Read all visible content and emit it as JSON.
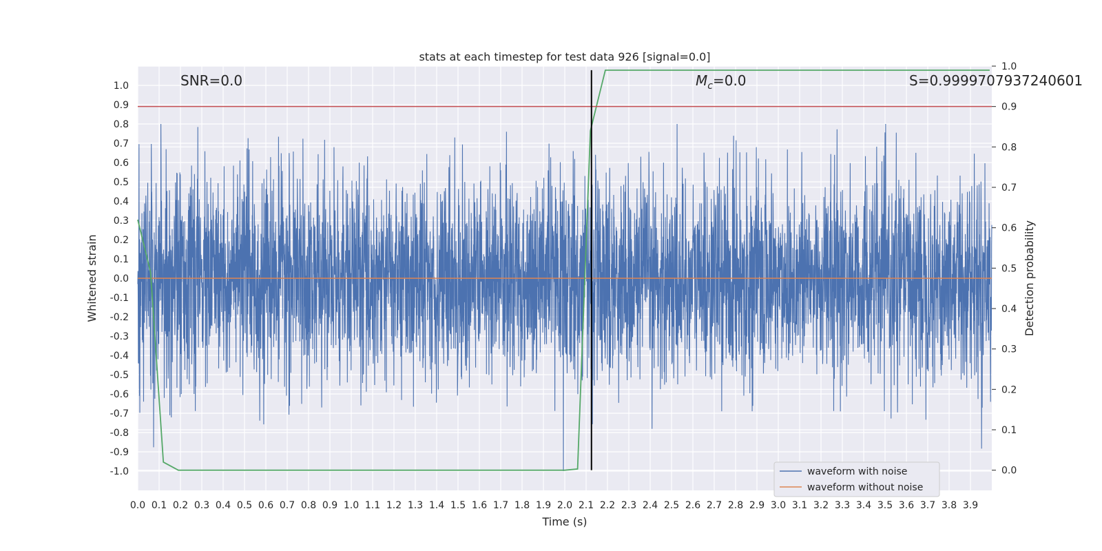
{
  "chart_data": {
    "type": "line",
    "title": "stats at each timestep for test data 926 [signal=0.0]",
    "xlabel": "Time (s)",
    "ylabel": "Whitened strain",
    "y2label": "Detection probability",
    "xlim": [
      0.0,
      4.0
    ],
    "ylim": [
      -1.1,
      1.1
    ],
    "y2lim": [
      -0.05,
      1.0
    ],
    "grid": true,
    "legend_position": "bottom-right",
    "x_ticks": [
      "0.0",
      "0.1",
      "0.2",
      "0.3",
      "0.4",
      "0.5",
      "0.6",
      "0.7",
      "0.8",
      "0.9",
      "1.0",
      "1.1",
      "1.2",
      "1.3",
      "1.4",
      "1.5",
      "1.6",
      "1.7",
      "1.8",
      "1.9",
      "2.0",
      "2.1",
      "2.2",
      "2.3",
      "2.4",
      "2.5",
      "2.6",
      "2.7",
      "2.8",
      "2.9",
      "3.0",
      "3.1",
      "3.2",
      "3.3",
      "3.4",
      "3.5",
      "3.6",
      "3.7",
      "3.8",
      "3.9"
    ],
    "y_ticks": [
      "1.0",
      "0.9",
      "0.8",
      "0.7",
      "0.6",
      "0.5",
      "0.4",
      "0.3",
      "0.2",
      "0.1",
      "0.0",
      "-0.1",
      "-0.2",
      "-0.3",
      "-0.4",
      "-0.5",
      "-0.6",
      "-0.7",
      "-0.8",
      "-0.9",
      "-1.0"
    ],
    "y2_ticks": [
      "0.0",
      "0.1",
      "0.2",
      "0.3",
      "0.4",
      "0.5",
      "0.6",
      "0.7",
      "0.8",
      "0.9",
      "1.0"
    ],
    "annotations": {
      "snr": "SNR=0.0",
      "mc_symbol": "M",
      "mc_sub": "c",
      "mc_value": "=0.0",
      "s_text": "S=0.9999707937240601"
    },
    "series": [
      {
        "name": "waveform with noise",
        "color": "#4c72b0",
        "axis": "left",
        "kind": "noise",
        "amplitude_range": [
          -1.0,
          0.8
        ]
      },
      {
        "name": "waveform without noise",
        "color": "#dd8452",
        "axis": "left",
        "values_constant": 0.0
      },
      {
        "color": "#55a868",
        "axis": "right",
        "x": [
          0.0,
          0.06,
          0.12,
          0.19,
          2.0,
          2.06,
          2.12,
          2.19,
          3.99
        ],
        "values": [
          0.62,
          0.49,
          0.02,
          0.0,
          0.0,
          0.003,
          0.84,
          0.99,
          0.99
        ]
      }
    ],
    "threshold_line": {
      "axis": "right",
      "value": 0.9,
      "color": "#c44e52"
    },
    "vertical_line": {
      "x": 2.125,
      "color": "#000000",
      "y2_range": [
        0.0,
        0.99
      ]
    }
  }
}
